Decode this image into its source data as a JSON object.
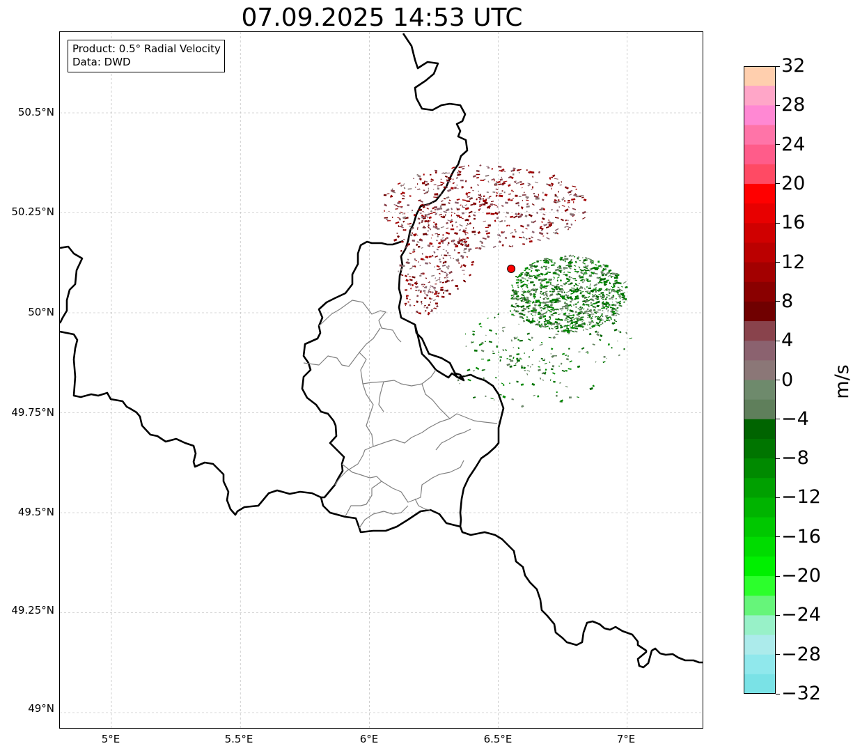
{
  "title": "07.09.2025 14:53 UTC",
  "info_box": {
    "product": "Product: 0.5° Radial Velocity",
    "source": "Data: DWD"
  },
  "map": {
    "lon_range": [
      4.8,
      7.3
    ],
    "lat_range": [
      48.95,
      50.7
    ],
    "lat_labels": [
      "50.5°N",
      "50.25°N",
      "50°N",
      "49.75°N",
      "49.5°N",
      "49.25°N",
      "49°N"
    ],
    "lon_labels": [
      "5°E",
      "5.5°E",
      "6°E",
      "6.5°E",
      "7°E"
    ],
    "gridlines": true,
    "radar_site": {
      "lon": 6.55,
      "lat": 50.11,
      "color": "#ff0000"
    },
    "border_color": "#000000",
    "region_border_color": "#808080"
  },
  "colorbar": {
    "label": "m/s",
    "min": -32,
    "max": 32,
    "tick_labels": [
      "32",
      "28",
      "24",
      "20",
      "16",
      "12",
      "8",
      "4",
      "0",
      "−4",
      "−8",
      "−12",
      "−16",
      "−20",
      "−24",
      "−28",
      "−32"
    ],
    "colors_top_to_bottom": [
      "#ffcfae",
      "#ffa6c8",
      "#ff88d3",
      "#ff74a8",
      "#ff5c8a",
      "#ff4a64",
      "#ff0000",
      "#e80000",
      "#d00000",
      "#bb0000",
      "#a30000",
      "#8a0000",
      "#700000",
      "#89434c",
      "#8b626f",
      "#8b7777",
      "#6e8a6c",
      "#5f7f5b",
      "#006400",
      "#007500",
      "#008a00",
      "#00a000",
      "#00b400",
      "#00c800",
      "#00dc00",
      "#00f000",
      "#2cff2c",
      "#66f57a",
      "#98f1c8",
      "#acebeb",
      "#90e8ec",
      "#7ae2e6"
    ]
  }
}
